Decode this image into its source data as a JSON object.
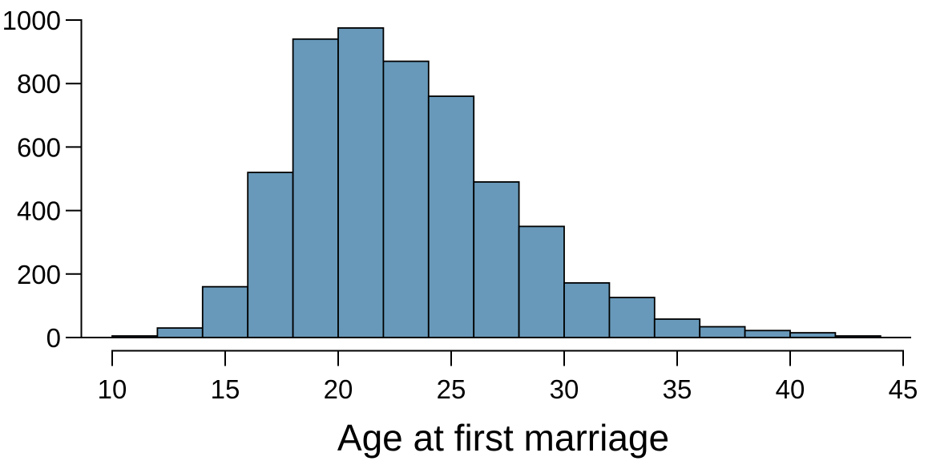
{
  "chart_data": {
    "type": "bar",
    "subtype": "histogram",
    "title": "",
    "xlabel": "Age at first marriage",
    "ylabel": "",
    "bin_width": 2,
    "bins": [
      {
        "start": 10,
        "end": 12,
        "count": 5
      },
      {
        "start": 12,
        "end": 14,
        "count": 30
      },
      {
        "start": 14,
        "end": 16,
        "count": 160
      },
      {
        "start": 16,
        "end": 18,
        "count": 520
      },
      {
        "start": 18,
        "end": 20,
        "count": 940
      },
      {
        "start": 20,
        "end": 22,
        "count": 975
      },
      {
        "start": 22,
        "end": 24,
        "count": 870
      },
      {
        "start": 24,
        "end": 26,
        "count": 760
      },
      {
        "start": 26,
        "end": 28,
        "count": 490
      },
      {
        "start": 28,
        "end": 30,
        "count": 350
      },
      {
        "start": 30,
        "end": 32,
        "count": 172
      },
      {
        "start": 32,
        "end": 34,
        "count": 126
      },
      {
        "start": 34,
        "end": 36,
        "count": 58
      },
      {
        "start": 36,
        "end": 38,
        "count": 34
      },
      {
        "start": 38,
        "end": 40,
        "count": 22
      },
      {
        "start": 40,
        "end": 42,
        "count": 15
      },
      {
        "start": 42,
        "end": 44,
        "count": 5
      }
    ],
    "x_ticks": [
      10,
      15,
      20,
      25,
      30,
      35,
      40,
      45
    ],
    "y_ticks": [
      0,
      200,
      400,
      600,
      800,
      1000
    ],
    "xlim": [
      10,
      45
    ],
    "ylim": [
      0,
      1000
    ],
    "grid": false,
    "legend_position": "none",
    "colors": {
      "bar_fill": "#6899BA",
      "bar_stroke": "#000000",
      "axis": "#000000",
      "text": "#000000",
      "background": "#FFFFFF"
    }
  }
}
